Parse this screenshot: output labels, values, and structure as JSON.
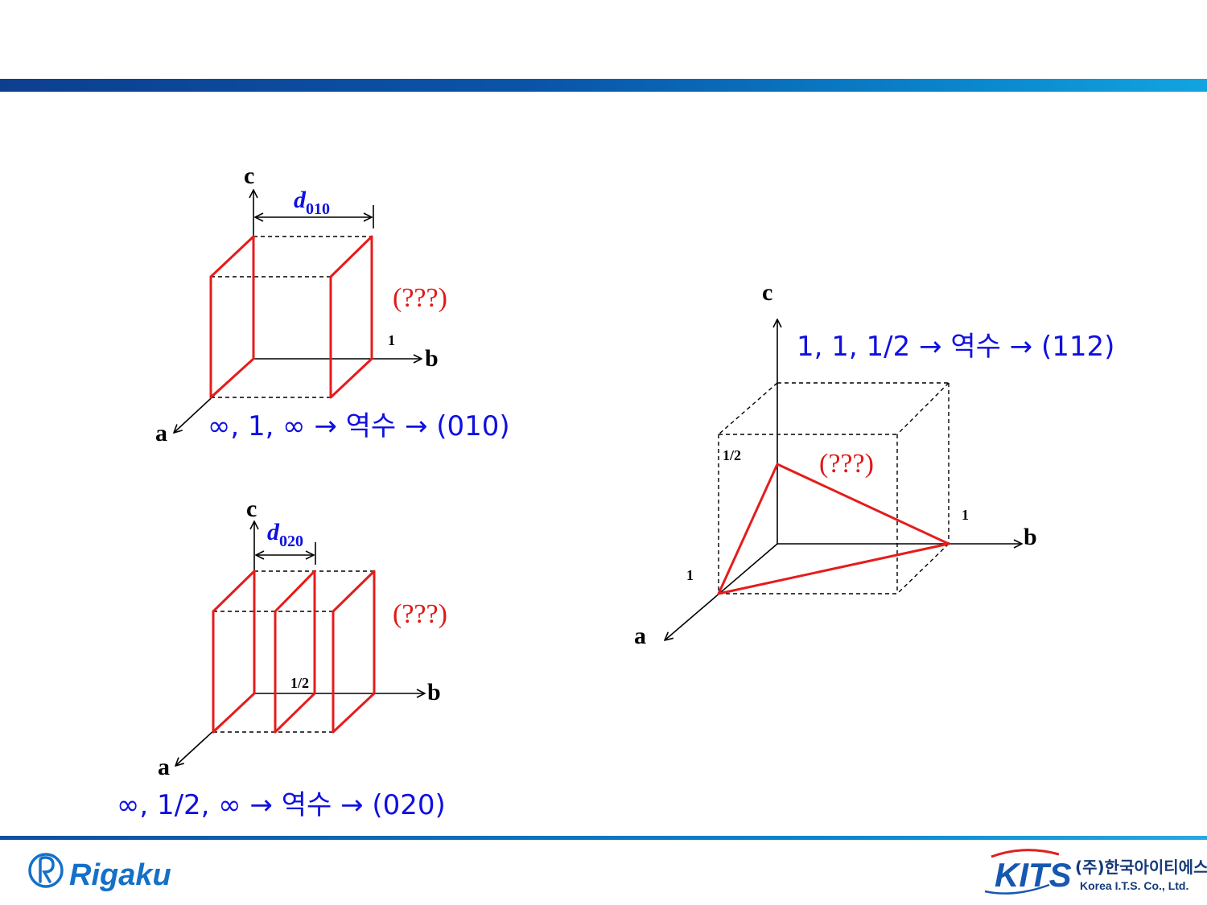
{
  "diagram_top_left": {
    "axis_c": "c",
    "axis_b": "b",
    "axis_a": "a",
    "spacing_symbol": "d",
    "spacing_index": "010",
    "plane_label": "(???)",
    "tick_b": "1",
    "equation": "∞, 1, ∞ → 역수 → (010)"
  },
  "diagram_bottom_left": {
    "axis_c": "c",
    "axis_b": "b",
    "axis_a": "a",
    "spacing_symbol": "d",
    "spacing_index": "020",
    "plane_label": "(???)",
    "tick_b": "1/2",
    "equation": "∞, 1/2, ∞ → 역수 → (020)"
  },
  "diagram_right": {
    "axis_c": "c",
    "axis_b": "b",
    "axis_a": "a",
    "plane_label": "(???)",
    "tick_c": "1/2",
    "tick_b": "1",
    "tick_a": "1",
    "equation": "1, 1, 1/2 → 역수 → (112)"
  },
  "footer": {
    "logo_left": "Rigaku",
    "logo_right_mark": "KITS",
    "logo_right_korean": "(주)한국아이티에스",
    "logo_right_english": "Korea I.T.S. Co., Ltd."
  },
  "colors": {
    "plane": "#e51c1c",
    "text_blue": "#1010e0",
    "bar": "#0a55a8"
  }
}
